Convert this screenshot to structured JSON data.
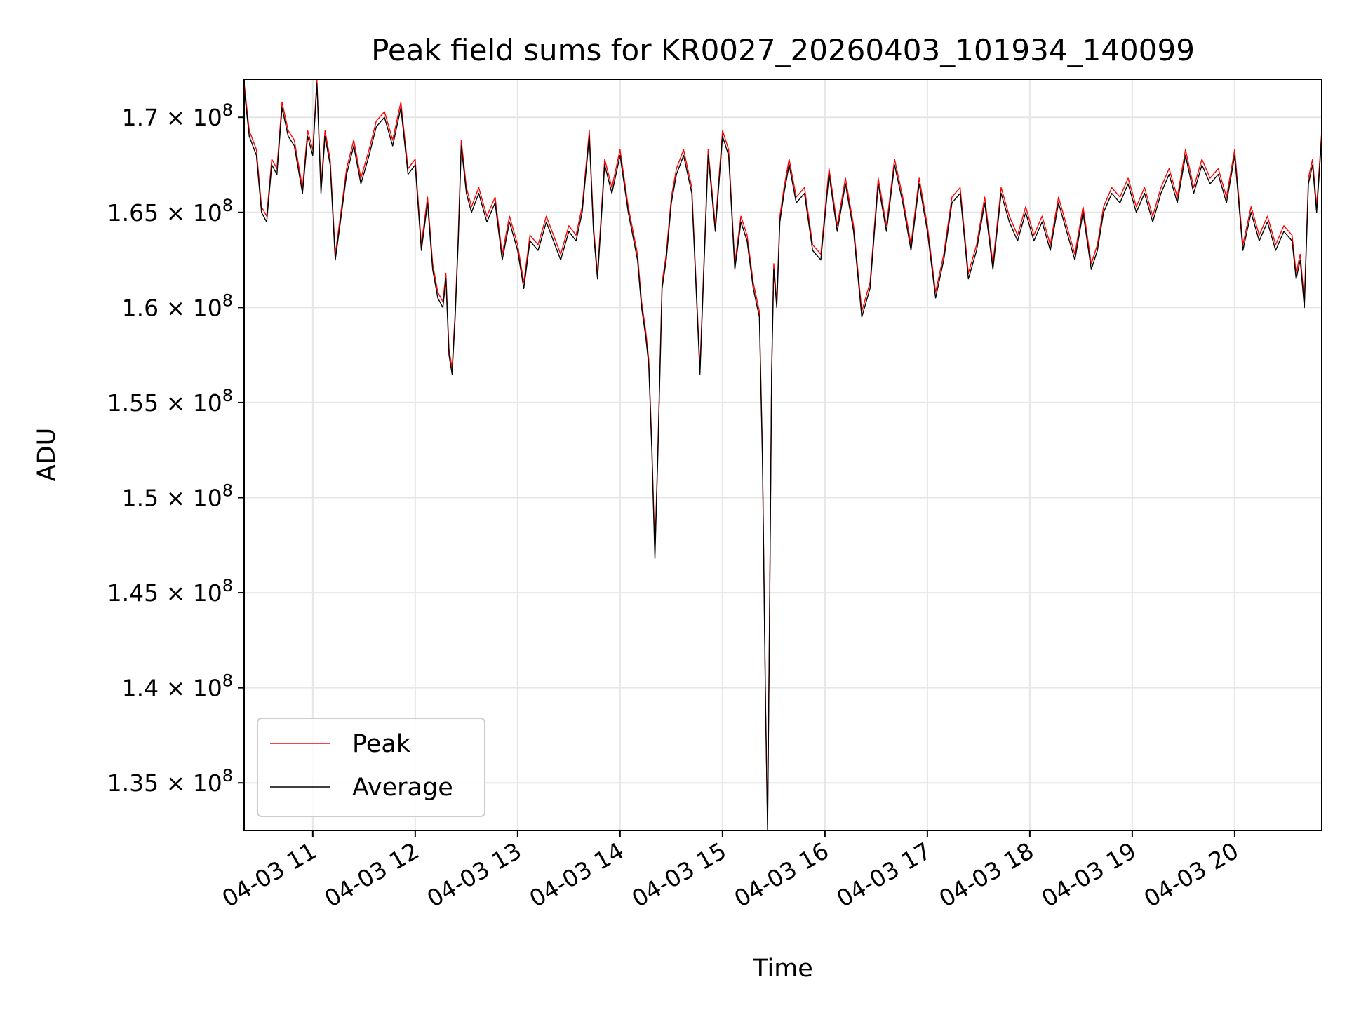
{
  "chart_data": {
    "type": "line",
    "title": "Peak field sums for KR0027_20260403_101934_140099",
    "xlabel": "Time",
    "ylabel": "ADU",
    "x_range_hours": [
      10.33,
      20.85
    ],
    "ylim": [
      132500000,
      172000000
    ],
    "grid": true,
    "legend_position": "lower-left",
    "x_ticks": [
      {
        "hour": 11,
        "label": "04-03 11"
      },
      {
        "hour": 12,
        "label": "04-03 12"
      },
      {
        "hour": 13,
        "label": "04-03 13"
      },
      {
        "hour": 14,
        "label": "04-03 14"
      },
      {
        "hour": 15,
        "label": "04-03 15"
      },
      {
        "hour": 16,
        "label": "04-03 16"
      },
      {
        "hour": 17,
        "label": "04-03 17"
      },
      {
        "hour": 18,
        "label": "04-03 18"
      },
      {
        "hour": 19,
        "label": "04-03 19"
      },
      {
        "hour": 20,
        "label": "04-03 20"
      }
    ],
    "y_ticks": [
      {
        "value": 135000000,
        "mantissa": "1.35",
        "exp": "8"
      },
      {
        "value": 140000000,
        "mantissa": "1.4",
        "exp": "8"
      },
      {
        "value": 145000000,
        "mantissa": "1.45",
        "exp": "8"
      },
      {
        "value": 150000000,
        "mantissa": "1.5",
        "exp": "8"
      },
      {
        "value": 155000000,
        "mantissa": "1.55",
        "exp": "8"
      },
      {
        "value": 160000000,
        "mantissa": "1.6",
        "exp": "8"
      },
      {
        "value": 165000000,
        "mantissa": "1.65",
        "exp": "8"
      },
      {
        "value": 170000000,
        "mantissa": "1.7",
        "exp": "8"
      }
    ],
    "series": [
      {
        "name": "Peak",
        "color": "#ff0000",
        "offset": 300000
      },
      {
        "name": "Average",
        "color": "#000000",
        "offset": 0
      }
    ],
    "x_hours": [
      10.33,
      10.38,
      10.45,
      10.5,
      10.55,
      10.6,
      10.65,
      10.7,
      10.76,
      10.82,
      10.9,
      10.95,
      11.0,
      11.04,
      11.08,
      11.12,
      11.17,
      11.22,
      11.27,
      11.33,
      11.4,
      11.47,
      11.55,
      11.62,
      11.7,
      11.78,
      11.86,
      11.93,
      12.0,
      12.06,
      12.12,
      12.17,
      12.22,
      12.27,
      12.3,
      12.33,
      12.36,
      12.39,
      12.42,
      12.45,
      12.5,
      12.55,
      12.62,
      12.7,
      12.78,
      12.85,
      12.92,
      13.0,
      13.06,
      13.12,
      13.2,
      13.28,
      13.35,
      13.42,
      13.5,
      13.57,
      13.63,
      13.7,
      13.74,
      13.78,
      13.85,
      13.92,
      14.0,
      14.08,
      14.17,
      14.21,
      14.25,
      14.28,
      14.31,
      14.34,
      14.37,
      14.41,
      14.45,
      14.5,
      14.55,
      14.62,
      14.7,
      14.78,
      14.86,
      14.93,
      15.0,
      15.06,
      15.12,
      15.18,
      15.24,
      15.3,
      15.36,
      15.39,
      15.42,
      15.44,
      15.46,
      15.48,
      15.5,
      15.53,
      15.56,
      15.6,
      15.65,
      15.72,
      15.8,
      15.88,
      15.96,
      16.04,
      16.12,
      16.2,
      16.28,
      16.36,
      16.44,
      16.52,
      16.6,
      16.68,
      16.76,
      16.84,
      16.92,
      17.0,
      17.08,
      17.16,
      17.24,
      17.32,
      17.4,
      17.48,
      17.56,
      17.64,
      17.72,
      17.8,
      17.88,
      17.96,
      18.04,
      18.12,
      18.2,
      18.28,
      18.36,
      18.44,
      18.52,
      18.6,
      18.66,
      18.72,
      18.8,
      18.88,
      18.96,
      19.04,
      19.12,
      19.2,
      19.28,
      19.36,
      19.44,
      19.52,
      19.6,
      19.68,
      19.76,
      19.84,
      19.92,
      20.0,
      20.08,
      20.16,
      20.24,
      20.32,
      20.4,
      20.48,
      20.56,
      20.6,
      20.64,
      20.68,
      20.72,
      20.76,
      20.8,
      20.85
    ],
    "average": [
      171500000,
      169000000,
      168000000,
      165000000,
      164500000,
      167500000,
      167000000,
      170500000,
      169000000,
      168500000,
      166000000,
      169000000,
      168000000,
      171800000,
      166000000,
      169000000,
      167500000,
      162500000,
      164500000,
      167000000,
      168500000,
      166500000,
      168000000,
      169500000,
      170000000,
      168500000,
      170500000,
      167000000,
      167500000,
      163000000,
      165500000,
      162000000,
      160500000,
      160000000,
      161500000,
      157500000,
      156500000,
      159500000,
      163500000,
      168500000,
      166000000,
      165000000,
      166000000,
      164500000,
      165500000,
      162500000,
      164500000,
      163000000,
      161000000,
      163500000,
      163000000,
      164500000,
      163500000,
      162500000,
      164000000,
      163500000,
      165000000,
      169000000,
      164000000,
      161500000,
      167500000,
      166000000,
      168000000,
      165000000,
      162500000,
      160000000,
      158500000,
      157000000,
      152500000,
      146800000,
      152500000,
      161000000,
      162500000,
      165500000,
      167000000,
      168000000,
      166000000,
      156500000,
      168000000,
      164000000,
      169000000,
      168000000,
      162000000,
      164500000,
      163500000,
      161000000,
      159500000,
      152000000,
      139000000,
      132500000,
      144000000,
      156500000,
      162000000,
      160000000,
      164500000,
      166000000,
      167500000,
      165500000,
      166000000,
      163000000,
      162500000,
      167000000,
      164000000,
      166500000,
      164000000,
      159500000,
      161000000,
      166500000,
      164000000,
      167500000,
      165500000,
      163000000,
      166500000,
      164000000,
      160500000,
      162500000,
      165500000,
      166000000,
      161500000,
      163000000,
      165500000,
      162000000,
      166000000,
      164500000,
      163500000,
      165000000,
      163500000,
      164500000,
      163000000,
      165500000,
      164000000,
      162500000,
      165000000,
      162000000,
      163000000,
      165000000,
      166000000,
      165500000,
      166500000,
      165000000,
      166000000,
      164500000,
      166000000,
      167000000,
      165500000,
      168000000,
      166000000,
      167500000,
      166500000,
      167000000,
      165500000,
      168000000,
      163000000,
      165000000,
      163500000,
      164500000,
      163000000,
      164000000,
      163500000,
      161500000,
      162500000,
      160000000,
      166500000,
      167500000,
      165000000,
      169000000
    ]
  },
  "legend": {
    "peak_label": "Peak",
    "average_label": "Average"
  }
}
